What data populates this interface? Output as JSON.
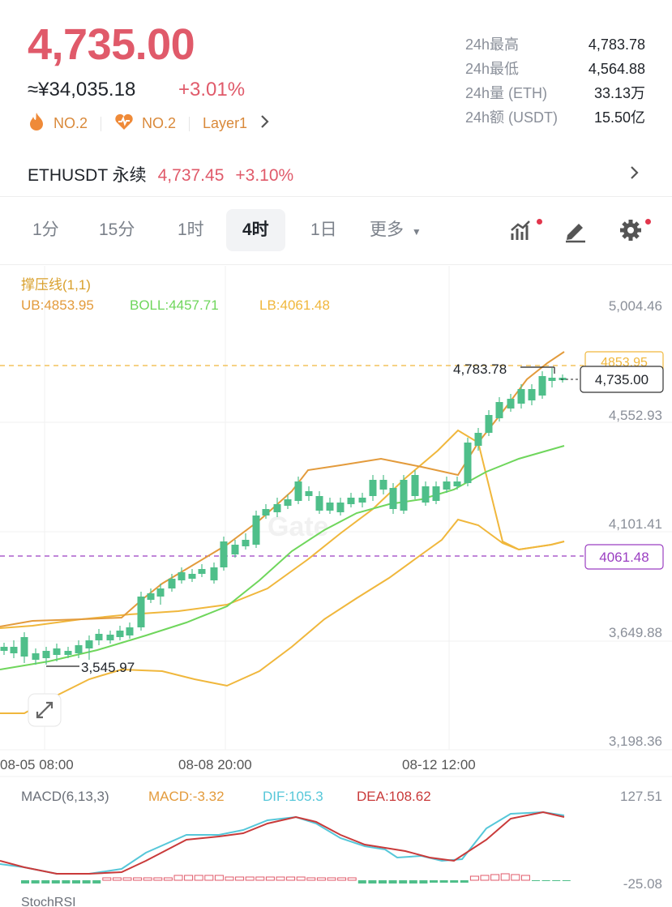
{
  "header": {
    "price": "4,735.00",
    "cny_price": "≈¥34,035.18",
    "change_pct": "+3.01%",
    "tags": [
      {
        "label": "NO.2",
        "icon": "flame-icon"
      },
      {
        "label": "NO.2",
        "icon": "heart-icon"
      },
      {
        "label": "Layer1",
        "icon": ""
      }
    ]
  },
  "stats": [
    {
      "label": "24h最高",
      "value": "4,783.78"
    },
    {
      "label": "24h最低",
      "value": "4,564.88"
    },
    {
      "label": "24h量 (ETH)",
      "value": "33.13万"
    },
    {
      "label": "24h额 (USDT)",
      "value": "15.50亿"
    }
  ],
  "perpetual": {
    "name": "ETHUSDT 永续",
    "price": "4,737.45",
    "change": "+3.10%"
  },
  "timeframes": [
    {
      "label": "1分",
      "active": false
    },
    {
      "label": "15分",
      "active": false
    },
    {
      "label": "1时",
      "active": false
    },
    {
      "label": "4时",
      "active": true
    },
    {
      "label": "1日",
      "active": false
    },
    {
      "label": "更多",
      "active": false
    }
  ],
  "indicator": {
    "name": "撑压线(1,1)",
    "ub": "UB:4853.95",
    "boll": "BOLL:4457.71",
    "lb": "LB:4061.48"
  },
  "price_axis": [
    "5,004.46",
    "4,552.93",
    "4,101.41",
    "3,649.88",
    "3,198.36"
  ],
  "price_axis_values": [
    5004.46,
    4552.93,
    4101.41,
    3649.88,
    3198.36
  ],
  "markers": {
    "ub_tag": "4853.95",
    "current_tag": "4,735.00",
    "lb_tag": "4061.48",
    "high_label": "4,783.78",
    "low_label": "3,545.97"
  },
  "time_axis": [
    "08-05 08:00",
    "08-08 20:00",
    "08-12 12:00"
  ],
  "macd": {
    "name": "MACD(6,13,3)",
    "macd": "MACD:-3.32",
    "dif": "DIF:105.3",
    "dea": "DEA:108.62",
    "axis_top": "127.51",
    "axis_bottom": "-25.08"
  },
  "colors": {
    "up": "#e05a6a",
    "down": "#4fbf8a",
    "ub_line": "#e39b3c",
    "boll_line": "#6fd65c",
    "lb_line": "#f0b73c",
    "dif_line": "#56c7d9",
    "dea_line": "#c93a3a",
    "lb_tag": "#9b3fc2"
  },
  "chart_data": {
    "type": "candlestick",
    "series": [
      {
        "name": "UB",
        "values": []
      },
      {
        "name": "BOLL",
        "values": []
      },
      {
        "name": "LB",
        "values": []
      }
    ],
    "current_price": 4735.0,
    "high": 4783.78,
    "low": 3545.97,
    "ub": 4853.95,
    "boll": 4457.71,
    "lb": 4061.48
  }
}
